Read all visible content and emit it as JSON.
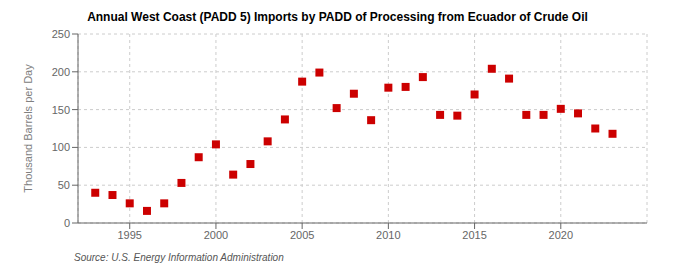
{
  "chart_data": {
    "type": "scatter",
    "title": "Annual West Coast (PADD 5) Imports by PADD of Processing from Ecuador of Crude Oil",
    "ylabel": "Thousand Barrels per Day",
    "annotations": [
      "Source: U.S. Energy Information Administration"
    ],
    "x": [
      1993,
      1994,
      1995,
      1996,
      1997,
      1998,
      1999,
      2000,
      2001,
      2002,
      2003,
      2004,
      2005,
      2006,
      2007,
      2008,
      2009,
      2010,
      2011,
      2012,
      2013,
      2014,
      2015,
      2016,
      2017,
      2018,
      2019,
      2020,
      2021,
      2022,
      2023
    ],
    "values": [
      40,
      37,
      26,
      16,
      26,
      53,
      87,
      104,
      64,
      78,
      108,
      137,
      187,
      199,
      152,
      171,
      136,
      179,
      180,
      193,
      143,
      142,
      170,
      204,
      191,
      143,
      143,
      151,
      145,
      125,
      118
    ],
    "xlim": [
      1992,
      2025
    ],
    "ylim": [
      0,
      250
    ],
    "xticks": [
      1995,
      2000,
      2005,
      2010,
      2015,
      2020
    ],
    "yticks": [
      0,
      50,
      100,
      150,
      200,
      250
    ],
    "color": "#cc0000",
    "marker": "square",
    "grid": true
  }
}
